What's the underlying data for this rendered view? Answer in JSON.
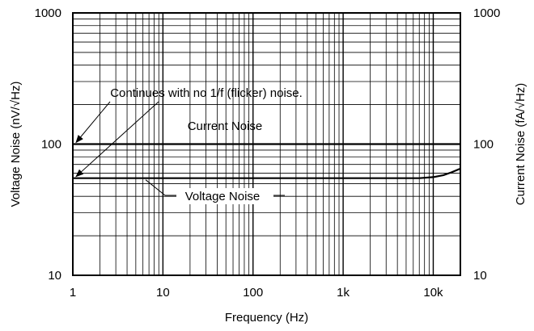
{
  "chart_data": {
    "type": "line",
    "xlabel": "Frequency (Hz)",
    "ylabel_left": "Voltage Noise (nV/√Hz)",
    "ylabel_right": "Current Noise (fA/√Hz)",
    "x_scale": "log",
    "y_scale": "log",
    "xlim": [
      1,
      20000
    ],
    "ylim": [
      10,
      1000
    ],
    "grid": true,
    "x_ticks": [
      {
        "value": 1,
        "label": "1"
      },
      {
        "value": 10,
        "label": "10"
      },
      {
        "value": 100,
        "label": "100"
      },
      {
        "value": 1000,
        "label": "1k"
      },
      {
        "value": 10000,
        "label": "10k"
      }
    ],
    "y_ticks_left": [
      {
        "value": 10,
        "label": "10"
      },
      {
        "value": 100,
        "label": "100"
      },
      {
        "value": 1000,
        "label": "1000"
      }
    ],
    "y_ticks_right": [
      {
        "value": 10,
        "label": "10"
      },
      {
        "value": 100,
        "label": "100"
      },
      {
        "value": 1000,
        "label": "1000"
      }
    ],
    "series": [
      {
        "name": "Current Noise",
        "x": [
          1,
          10,
          100,
          1000,
          10000,
          20000
        ],
        "y": [
          100,
          100,
          100,
          100,
          100,
          100
        ]
      },
      {
        "name": "Voltage Noise",
        "x": [
          1,
          10,
          100,
          1000,
          7000,
          10000,
          13000,
          16000,
          20000
        ],
        "y": [
          55,
          55,
          55,
          55,
          55,
          56,
          58,
          61,
          65
        ]
      }
    ],
    "annotations": [
      {
        "text": "Continues with no 1/f (flicker) noise."
      }
    ]
  }
}
